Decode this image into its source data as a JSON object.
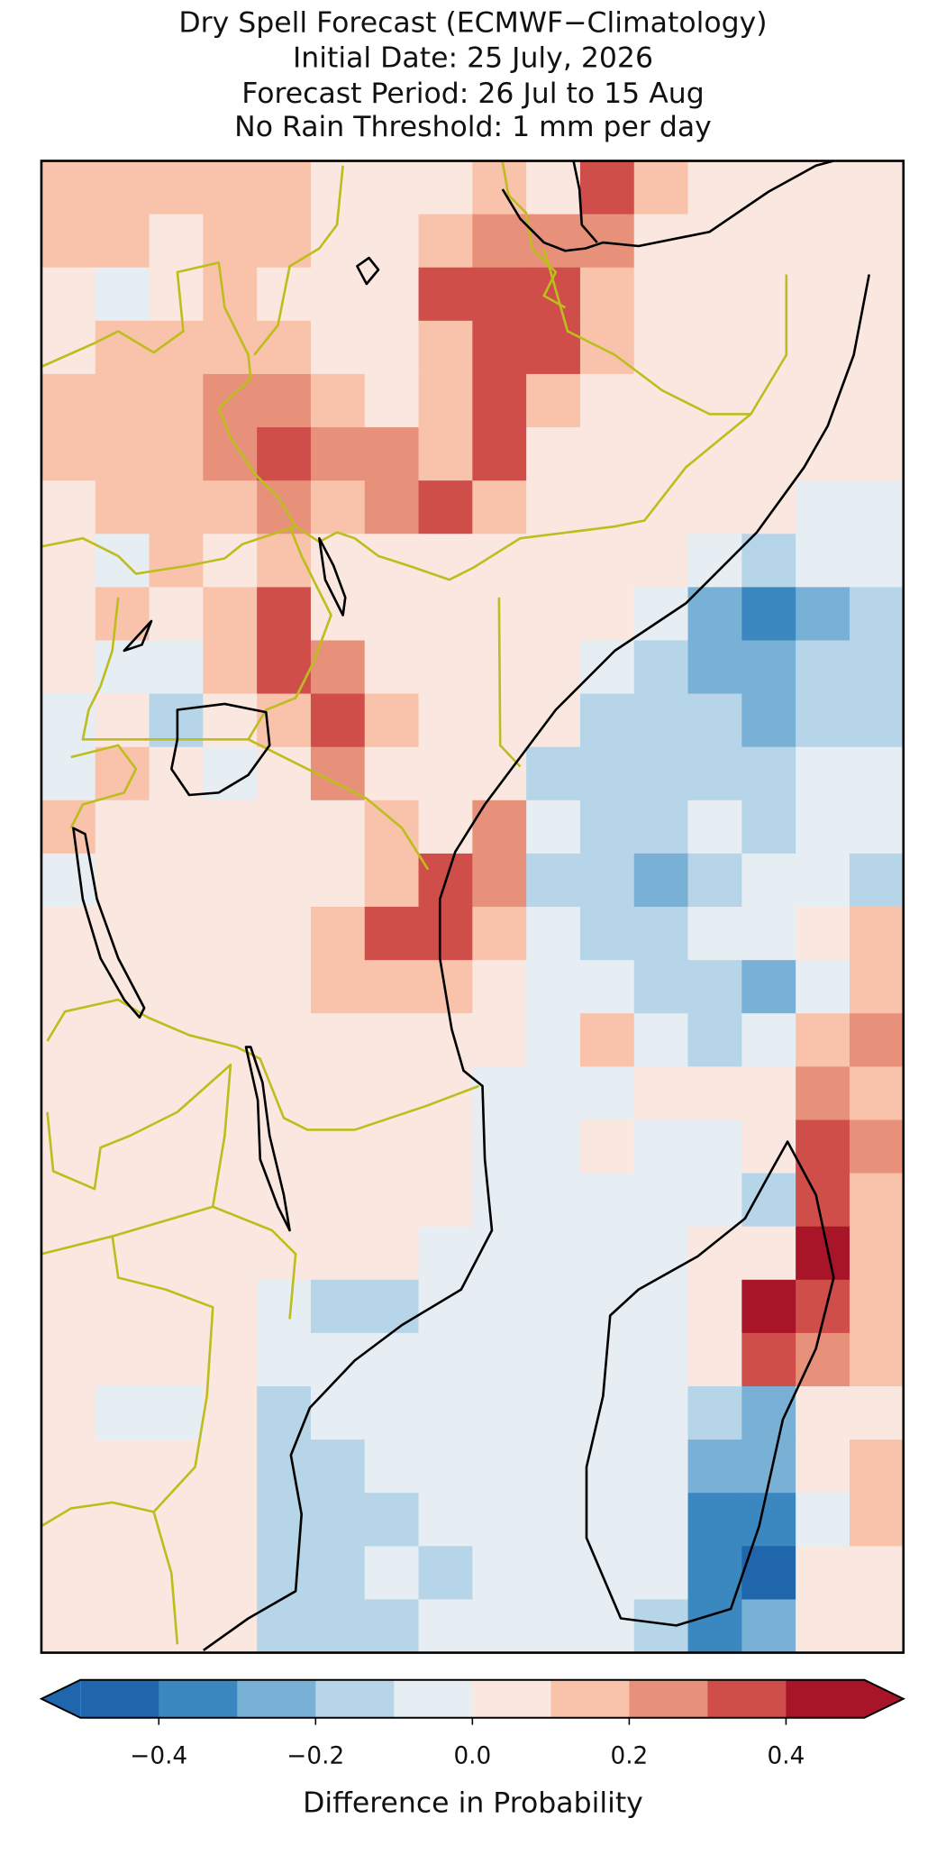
{
  "chart_data": {
    "type": "raster-map",
    "title": [
      "Dry Spell Forecast (ECMWF−Climatology)",
      "Initial Date: 25 July, 2026",
      "Forecast Period: 26 Jul to 15 Aug",
      "No Rain Threshold: 1 mm per day"
    ],
    "grid_values": [
      [
        0.15,
        0.15,
        0.1,
        0.15,
        0.15,
        0.05,
        0.05,
        0.05,
        0.1,
        0.05,
        0.35,
        0.15,
        0.05,
        0.05,
        0.05,
        0.05
      ],
      [
        0.15,
        0.1,
        0.05,
        0.15,
        0.15,
        0.05,
        0.05,
        0.15,
        0.25,
        0.2,
        0.2,
        0.05,
        0.05,
        0.05,
        0.05,
        0.05
      ],
      [
        0.05,
        -0.05,
        0.05,
        0.1,
        0.05,
        0.05,
        0.05,
        0.35,
        0.3,
        0.35,
        0.15,
        0.05,
        0.05,
        0.05,
        0.05,
        0.05
      ],
      [
        0.05,
        0.1,
        0.15,
        0.15,
        0.15,
        0.05,
        0.05,
        0.15,
        0.35,
        0.3,
        0.15,
        0.05,
        0.05,
        0.05,
        0.05,
        0.05
      ],
      [
        0.1,
        0.15,
        0.15,
        0.2,
        0.25,
        0.1,
        0.05,
        0.1,
        0.35,
        0.1,
        0.05,
        0.05,
        0.05,
        0.05,
        0.05,
        0.05
      ],
      [
        0.1,
        0.1,
        0.15,
        0.2,
        0.3,
        0.25,
        0.2,
        0.15,
        0.35,
        0.05,
        0.05,
        0.05,
        0.05,
        0.05,
        0.05,
        0.05
      ],
      [
        0.05,
        0.15,
        0.15,
        0.15,
        0.25,
        0.15,
        0.25,
        0.35,
        0.1,
        0.05,
        0.05,
        0.05,
        0.05,
        0.05,
        -0.05,
        -0.05
      ],
      [
        0.05,
        -0.05,
        0.1,
        0.05,
        0.15,
        0.05,
        0.05,
        0.05,
        0.05,
        0.05,
        0.05,
        0.05,
        -0.05,
        -0.15,
        -0.05,
        -0.05
      ],
      [
        0.05,
        0.1,
        0.05,
        0.1,
        0.3,
        0.05,
        0.05,
        0.05,
        0.05,
        0.05,
        0.05,
        -0.05,
        -0.25,
        -0.35,
        -0.25,
        -0.15
      ],
      [
        0.05,
        -0.05,
        -0.05,
        0.1,
        0.3,
        0.25,
        0.05,
        0.05,
        0.05,
        0.05,
        -0.05,
        -0.15,
        -0.25,
        -0.3,
        -0.15,
        -0.15
      ],
      [
        -0.05,
        0.05,
        -0.15,
        0.05,
        0.15,
        0.3,
        0.15,
        0.05,
        0.05,
        0.05,
        -0.15,
        -0.15,
        -0.15,
        -0.25,
        -0.15,
        -0.15
      ],
      [
        -0.05,
        0.1,
        0.05,
        -0.05,
        0.05,
        0.25,
        0.05,
        0.05,
        0.05,
        -0.15,
        -0.15,
        -0.15,
        -0.15,
        -0.15,
        -0.05,
        -0.05
      ],
      [
        0.15,
        0.05,
        0.05,
        0.05,
        0.05,
        0.05,
        0.1,
        0.05,
        0.25,
        -0.05,
        -0.15,
        -0.15,
        -0.05,
        -0.15,
        -0.05,
        -0.05
      ],
      [
        -0.05,
        0.05,
        0.05,
        0.05,
        0.05,
        0.05,
        0.15,
        0.35,
        0.25,
        -0.15,
        -0.15,
        -0.25,
        -0.15,
        -0.05,
        -0.05,
        -0.15
      ],
      [
        0.05,
        0.05,
        0.05,
        0.05,
        0.05,
        0.1,
        0.35,
        0.3,
        0.15,
        -0.05,
        -0.15,
        -0.15,
        -0.05,
        -0.05,
        0.05,
        0.15
      ],
      [
        0.05,
        0.05,
        0.05,
        0.05,
        0.05,
        0.15,
        0.15,
        0.1,
        0.05,
        -0.05,
        -0.05,
        -0.15,
        -0.15,
        -0.25,
        -0.05,
        0.15
      ],
      [
        0.05,
        0.05,
        0.05,
        0.05,
        0.05,
        0.05,
        0.05,
        0.05,
        0.05,
        -0.05,
        0.15,
        -0.05,
        -0.15,
        -0.05,
        0.15,
        0.25
      ],
      [
        0.05,
        0.05,
        0.05,
        0.05,
        0.05,
        0.05,
        0.05,
        0.05,
        -0.05,
        -0.05,
        -0.05,
        0.05,
        0.05,
        0.05,
        0.25,
        0.15
      ],
      [
        0.05,
        0.05,
        0.05,
        0.05,
        0.05,
        0.05,
        0.05,
        0.05,
        -0.05,
        -0.05,
        0.05,
        -0.05,
        -0.05,
        0.05,
        0.35,
        0.25
      ],
      [
        0.05,
        0.05,
        0.05,
        0.05,
        0.05,
        0.05,
        0.05,
        0.05,
        -0.05,
        -0.05,
        -0.05,
        -0.05,
        -0.05,
        -0.15,
        0.35,
        0.15
      ],
      [
        0.05,
        0.05,
        0.05,
        0.05,
        0.05,
        0.05,
        0.05,
        -0.05,
        -0.05,
        -0.05,
        -0.05,
        -0.05,
        0.05,
        0.05,
        0.45,
        0.15
      ],
      [
        0.05,
        0.05,
        0.05,
        0.05,
        -0.05,
        -0.15,
        -0.15,
        -0.05,
        -0.05,
        -0.05,
        -0.05,
        -0.05,
        0.05,
        0.45,
        0.3,
        0.15
      ],
      [
        0.05,
        0.05,
        0.05,
        0.05,
        -0.05,
        -0.05,
        -0.05,
        -0.05,
        -0.05,
        -0.05,
        -0.05,
        -0.05,
        0.05,
        0.35,
        0.25,
        0.15
      ],
      [
        0.05,
        -0.05,
        -0.05,
        0.05,
        -0.15,
        -0.05,
        -0.05,
        -0.05,
        -0.05,
        -0.05,
        -0.05,
        -0.05,
        -0.15,
        -0.25,
        0.05,
        0.05
      ],
      [
        0.05,
        0.05,
        0.05,
        0.05,
        -0.15,
        -0.15,
        -0.05,
        -0.05,
        -0.05,
        -0.05,
        -0.05,
        -0.05,
        -0.25,
        -0.25,
        0.05,
        0.15
      ],
      [
        0.05,
        0.05,
        0.05,
        0.05,
        -0.15,
        -0.15,
        -0.15,
        -0.05,
        -0.05,
        -0.05,
        -0.05,
        -0.05,
        -0.35,
        -0.35,
        -0.05,
        0.15
      ],
      [
        0.05,
        0.05,
        0.05,
        0.05,
        -0.15,
        -0.15,
        -0.05,
        -0.15,
        -0.05,
        -0.05,
        -0.05,
        -0.05,
        -0.35,
        -0.45,
        0.05,
        0.05
      ],
      [
        0.05,
        0.05,
        0.05,
        0.05,
        -0.15,
        -0.15,
        -0.15,
        -0.05,
        -0.05,
        -0.05,
        -0.05,
        -0.15,
        -0.35,
        -0.25,
        0.05,
        0.05
      ]
    ],
    "colorbar": {
      "label": "Difference in Probability",
      "clim": [
        -0.5,
        0.5
      ],
      "colors": [
        "#2066ac",
        "#3b88c0",
        "#78b1d5",
        "#b6d5e8",
        "#e6edf3",
        "#fae8e0",
        "#f8c3aa",
        "#e8917a",
        "#cf4e49",
        "#a81529"
      ],
      "extend": "both",
      "ticks": [
        {
          "value": -0.4,
          "label": "−0.4"
        },
        {
          "value": -0.2,
          "label": "−0.2"
        },
        {
          "value": 0,
          "label": "0.0"
        },
        0.2,
        0.4
      ]
    }
  }
}
